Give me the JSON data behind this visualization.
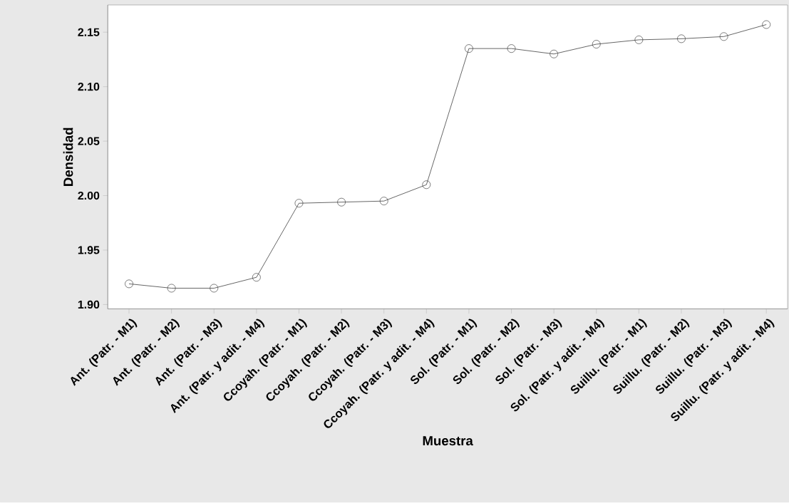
{
  "chart_data": {
    "type": "line",
    "xlabel": "Muestra",
    "ylabel": "Densidad",
    "categories": [
      "Ant. (Patr. - M1)",
      "Ant. (Patr. - M2)",
      "Ant. (Patr. - M3)",
      "Ant. (Patr. y adit. - M4)",
      "Ccoyah. (Patr. - M1)",
      "Ccoyah. (Patr. - M2)",
      "Ccoyah. (Patr. - M3)",
      "Ccoyah. (Patr. y adit. - M4)",
      "Sol. (Patr. - M1)",
      "Sol. (Patr. - M2)",
      "Sol. (Patr. - M3)",
      "Sol. (Patr. y adit. - M4)",
      "Suillu. (Patr. - M1)",
      "Suillu. (Patr. - M2)",
      "Suillu. (Patr. - M3)",
      "Suillu. (Patr. y adit. - M4)"
    ],
    "series": [
      {
        "color": "#404040",
        "values": [
          1.919,
          1.915,
          1.915,
          1.925,
          1.993,
          1.994,
          1.995,
          2.01,
          2.135,
          2.135,
          2.13,
          2.139,
          2.143,
          2.144,
          2.146,
          2.157
        ]
      }
    ],
    "ylim": [
      1.896,
      2.175
    ],
    "yticks": [
      {
        "value": 1.9,
        "label": "1.90"
      },
      {
        "value": 1.95,
        "label": "1.95"
      },
      {
        "value": 2.0,
        "label": "2.00"
      },
      {
        "value": 2.05,
        "label": "2.05"
      },
      {
        "value": 2.1,
        "label": "2.10"
      },
      {
        "value": 2.15,
        "label": "2.15"
      }
    ],
    "marker": "circle",
    "line_style": "solid"
  }
}
